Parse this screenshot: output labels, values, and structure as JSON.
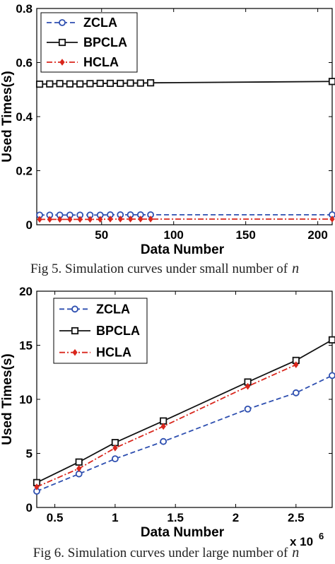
{
  "chart_data": [
    {
      "type": "line",
      "caption": "Fig 5. Simulation curves under small number of",
      "caption_var": "n",
      "xlabel": "Data Number",
      "ylabel": "Used Times(s)",
      "xlim": [
        5,
        210
      ],
      "ylim": [
        0,
        0.8
      ],
      "xticks": [
        50,
        100,
        150,
        200
      ],
      "yticks": [
        0,
        0.2,
        0.4,
        0.6,
        0.8
      ],
      "xticklabels": [
        "50",
        "100",
        "150",
        "200"
      ],
      "yticklabels": [
        "0",
        "0.2",
        "0.4",
        "0.6",
        "0.8"
      ],
      "legend_position": "top-left",
      "x": [
        7,
        14,
        21,
        28,
        35,
        42,
        49,
        56,
        63,
        70,
        77,
        84,
        210
      ],
      "series": [
        {
          "name": "ZCLA",
          "color": "#2e4fb0",
          "line": "dashed",
          "marker": "circle",
          "values": [
            0.036,
            0.036,
            0.036,
            0.036,
            0.036,
            0.036,
            0.036,
            0.037,
            0.037,
            0.037,
            0.037,
            0.037,
            0.037
          ]
        },
        {
          "name": "BPCLA",
          "color": "#111111",
          "line": "solid",
          "marker": "square",
          "values": [
            0.52,
            0.521,
            0.522,
            0.521,
            0.521,
            0.522,
            0.523,
            0.523,
            0.523,
            0.524,
            0.524,
            0.525,
            0.53
          ]
        },
        {
          "name": "HCLA",
          "color": "#d9261c",
          "line": "dashdot",
          "marker": "diamond",
          "values": [
            0.02,
            0.02,
            0.02,
            0.02,
            0.02,
            0.02,
            0.02,
            0.021,
            0.021,
            0.021,
            0.021,
            0.021,
            0.021
          ]
        }
      ]
    },
    {
      "type": "line",
      "caption": "Fig 6. Simulation curves under large number of",
      "caption_var": "n",
      "xlabel": "Data Number",
      "ylabel": "Used Times(s)",
      "multiplier": "x 10",
      "multiplier_exp": "6",
      "xlim": [
        0.35,
        2.8
      ],
      "ylim": [
        0,
        20
      ],
      "xticks": [
        0.5,
        1,
        1.5,
        2,
        2.5
      ],
      "yticks": [
        0,
        5,
        10,
        15,
        20
      ],
      "xticklabels": [
        "0.5",
        "1",
        "1.5",
        "2",
        "2.5"
      ],
      "yticklabels": [
        "0",
        "5",
        "10",
        "15",
        "20"
      ],
      "legend_position": "top-left",
      "x": [
        0.35,
        0.7,
        1.0,
        1.4,
        2.1,
        2.5,
        2.8
      ],
      "series": [
        {
          "name": "ZCLA",
          "color": "#2e4fb0",
          "line": "dashed",
          "marker": "circle",
          "values": [
            1.5,
            3.1,
            4.5,
            6.1,
            9.1,
            10.6,
            12.2
          ]
        },
        {
          "name": "BPCLA",
          "color": "#111111",
          "line": "solid",
          "marker": "square",
          "values": [
            2.3,
            4.2,
            6.0,
            8.0,
            11.6,
            13.6,
            15.5
          ]
        },
        {
          "name": "HCLA",
          "color": "#d9261c",
          "line": "dashdot",
          "marker": "diamond",
          "values": [
            1.9,
            3.6,
            5.5,
            7.5,
            11.2,
            13.2,
            null
          ]
        }
      ]
    }
  ]
}
